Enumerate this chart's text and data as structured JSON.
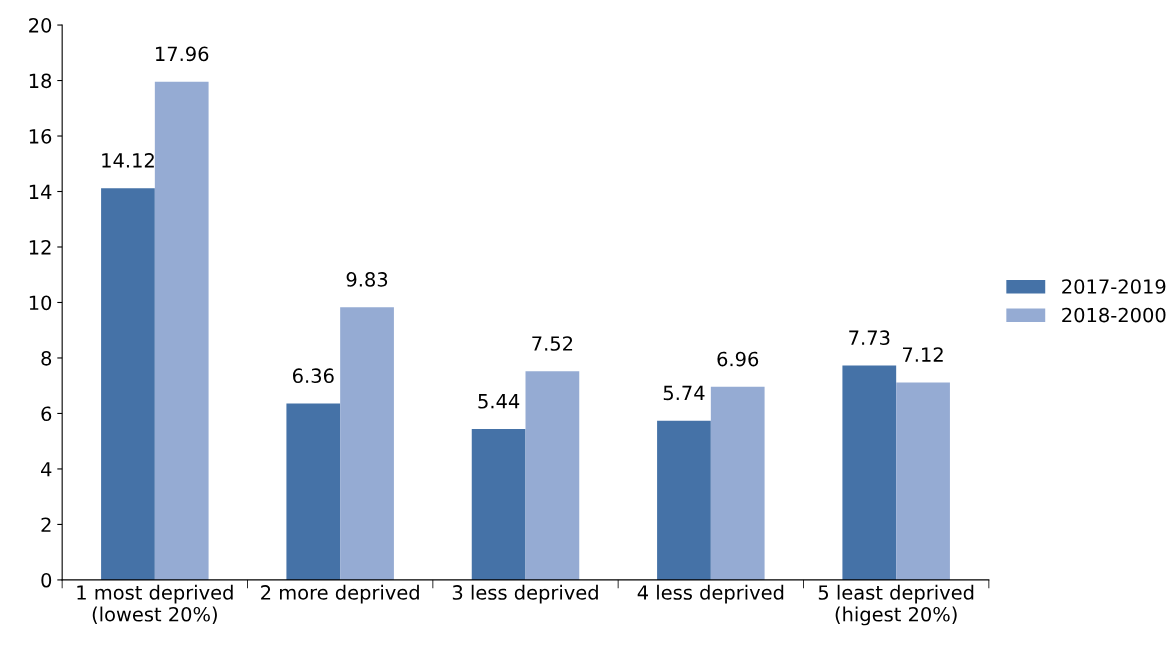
{
  "chart_data": {
    "type": "bar",
    "categories": [
      "1 most deprived\n(lowest 20%)",
      "2 more deprived",
      "3 less deprived",
      "4 less deprived",
      "5 least deprived\n(higest 20%)"
    ],
    "series": [
      {
        "name": "2017-2019",
        "color": "#4572a7",
        "values": [
          14.12,
          6.36,
          5.44,
          5.74,
          7.73
        ]
      },
      {
        "name": "2018-2000",
        "color": "#95abd3",
        "values": [
          17.96,
          9.83,
          7.52,
          6.96,
          7.12
        ]
      }
    ],
    "ylim": [
      0,
      20
    ],
    "yticks": [
      0,
      2,
      4,
      6,
      8,
      10,
      12,
      14,
      16,
      18,
      20
    ],
    "data_labels": true,
    "grid": false,
    "legend": "right"
  }
}
